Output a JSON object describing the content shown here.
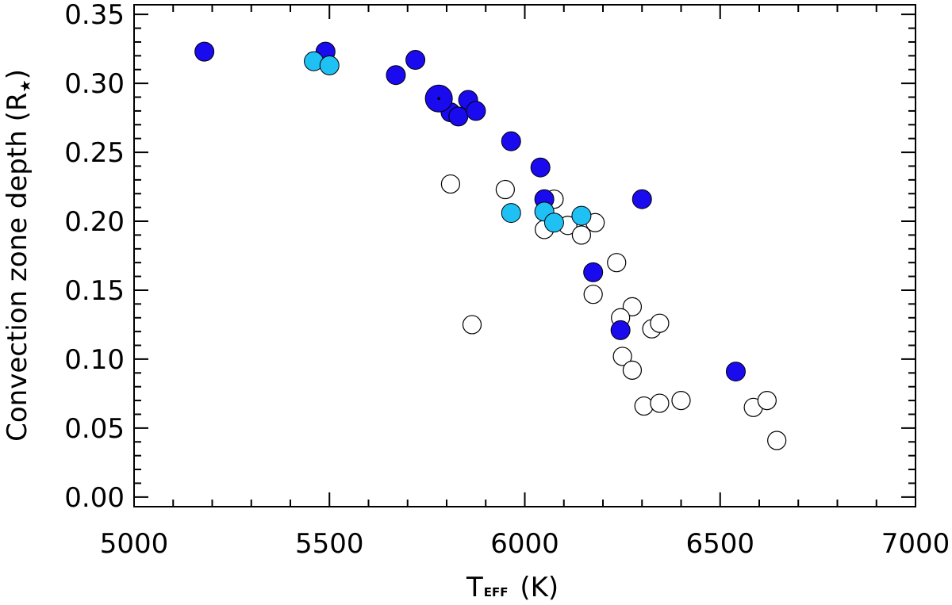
{
  "chart_data": {
    "type": "scatter",
    "xlabel": "T",
    "xlabel_subscript": "EFF",
    "xlabel_unit": " (K)",
    "ylabel": "Convection zone depth (R",
    "ylabel_star": "★",
    "ylabel_close": ")",
    "xlim": [
      5000,
      7000
    ],
    "ylim": [
      -0.007,
      0.357
    ],
    "x_ticks": [
      "5000",
      "5500",
      "6000",
      "6500",
      "7000"
    ],
    "x_tick_values": [
      5000,
      5500,
      6000,
      6500,
      7000
    ],
    "y_ticks": [
      "0.00",
      "0.05",
      "0.10",
      "0.15",
      "0.20",
      "0.25",
      "0.30",
      "0.35"
    ],
    "y_tick_values": [
      0,
      0.05,
      0.1,
      0.15,
      0.2,
      0.25,
      0.3,
      0.35
    ],
    "grid": false,
    "legend": "none",
    "colors": {
      "dark_blue": "#1a0aee",
      "light_blue": "#1fc1f5",
      "open": "#ffffff",
      "edge": "#000000"
    },
    "series": [
      {
        "style": "open-circle",
        "color": "#ffffff",
        "points": [
          [
            5810,
            0.227
          ],
          [
            5865,
            0.125
          ],
          [
            5950,
            0.223
          ],
          [
            6050,
            0.194
          ],
          [
            6075,
            0.216
          ],
          [
            6110,
            0.197
          ],
          [
            6145,
            0.19
          ],
          [
            6180,
            0.199
          ],
          [
            6235,
            0.17
          ],
          [
            6175,
            0.147
          ],
          [
            6275,
            0.138
          ],
          [
            6245,
            0.13
          ],
          [
            6325,
            0.122
          ],
          [
            6345,
            0.126
          ],
          [
            6250,
            0.102
          ],
          [
            6275,
            0.092
          ],
          [
            6305,
            0.066
          ],
          [
            6345,
            0.068
          ],
          [
            6400,
            0.07
          ],
          [
            6585,
            0.065
          ],
          [
            6620,
            0.07
          ],
          [
            6645,
            0.041
          ]
        ]
      },
      {
        "style": "filled-circle",
        "color": "#1a0aee",
        "points": [
          [
            5180,
            0.323
          ],
          [
            5490,
            0.323
          ],
          [
            5670,
            0.306
          ],
          [
            5720,
            0.317
          ],
          [
            5810,
            0.279
          ],
          [
            5830,
            0.276
          ],
          [
            5855,
            0.288
          ],
          [
            5875,
            0.28
          ],
          [
            5965,
            0.258
          ],
          [
            6040,
            0.239
          ],
          [
            6050,
            0.216
          ],
          [
            6300,
            0.216
          ],
          [
            6175,
            0.163
          ],
          [
            6245,
            0.121
          ],
          [
            6540,
            0.091
          ]
        ]
      },
      {
        "style": "filled-circle-large",
        "color": "#1a0aee",
        "points": [
          [
            5780,
            0.289
          ]
        ]
      },
      {
        "style": "filled-circle",
        "color": "#1fc1f5",
        "points": [
          [
            5460,
            0.316
          ],
          [
            5500,
            0.313
          ],
          [
            5965,
            0.206
          ],
          [
            6050,
            0.207
          ],
          [
            6075,
            0.199
          ],
          [
            6145,
            0.204
          ]
        ]
      }
    ]
  }
}
